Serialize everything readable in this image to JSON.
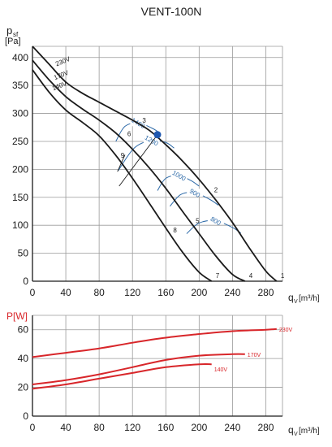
{
  "title": "VENT-100N",
  "colors": {
    "grid": "#9a9a9a",
    "axis": "#1a1a1a",
    "pressure_curve": "#1a1a1a",
    "speed_curve": "#2d6aa8",
    "operating_point": "#1f58b0",
    "power_curve": "#d8262a",
    "power_axis_label": "#d8262a"
  },
  "chart_data": [
    {
      "type": "line",
      "title": "VENT-100N",
      "ylabel_main": "p",
      "ylabel_sub": "sf",
      "ylabel_unit": "[Pa]",
      "xlabel": "q",
      "xlabel_sub": "V",
      "xlabel_unit": "[m³/h]",
      "xlim": [
        0,
        300
      ],
      "ylim": [
        0,
        420
      ],
      "xticks": [
        0,
        40,
        80,
        120,
        160,
        200,
        240,
        280
      ],
      "yticks": [
        0,
        50,
        100,
        150,
        200,
        250,
        300,
        350,
        400
      ],
      "grid": true,
      "series": [
        {
          "name": "230V",
          "label": "1",
          "x": [
            0,
            20,
            40,
            60,
            80,
            100,
            120,
            140,
            160,
            180,
            200,
            220,
            240,
            260,
            280,
            293
          ],
          "y": [
            420,
            388,
            356,
            336,
            320,
            304,
            288,
            270,
            244,
            215,
            182,
            145,
            105,
            60,
            18,
            0
          ]
        },
        {
          "name": "170V",
          "label": "4",
          "x": [
            0,
            20,
            40,
            60,
            80,
            100,
            120,
            140,
            160,
            180,
            200,
            220,
            240,
            255
          ],
          "y": [
            395,
            360,
            330,
            308,
            288,
            265,
            236,
            203,
            166,
            125,
            85,
            45,
            12,
            0
          ]
        },
        {
          "name": "140V",
          "label": "7",
          "x": [
            0,
            20,
            40,
            60,
            80,
            100,
            120,
            140,
            160,
            180,
            200,
            215
          ],
          "y": [
            378,
            338,
            306,
            284,
            260,
            225,
            184,
            140,
            95,
            52,
            16,
            0
          ]
        }
      ],
      "point_labels": [
        "2",
        "3",
        "5",
        "6",
        "8",
        "9"
      ],
      "speed_curves": [
        {
          "label": "1400",
          "x": [
            100,
            111,
            127,
            143,
            150
          ],
          "y": [
            250,
            277,
            283,
            274,
            268
          ]
        },
        {
          "label": "1200",
          "x": [
            103,
            122,
            143,
            160,
            170
          ],
          "y": [
            198,
            238,
            252,
            248,
            238
          ]
        },
        {
          "label": "1000",
          "x": [
            150,
            160,
            176,
            190,
            200
          ],
          "y": [
            162,
            184,
            189,
            180,
            170
          ]
        },
        {
          "label": "900",
          "x": [
            165,
            178,
            195,
            213,
            223
          ],
          "y": [
            134,
            155,
            158,
            146,
            136
          ]
        },
        {
          "label": "800",
          "x": [
            185,
            200,
            220,
            240,
            250
          ],
          "y": [
            85,
            104,
            108,
            96,
            86
          ]
        }
      ],
      "operating_point": {
        "x": 150,
        "y": 262
      }
    },
    {
      "type": "line",
      "ylabel": "P[W]",
      "xlabel": "q",
      "xlabel_sub": "V",
      "xlabel_unit": "[m³/h]",
      "xlim": [
        0,
        300
      ],
      "ylim": [
        0,
        70
      ],
      "xticks": [
        0,
        40,
        80,
        120,
        160,
        200,
        240,
        280
      ],
      "yticks": [
        0,
        20,
        40,
        60
      ],
      "grid": true,
      "series": [
        {
          "name": "230V",
          "x": [
            0,
            40,
            80,
            120,
            160,
            200,
            240,
            280,
            293
          ],
          "y": [
            41,
            44,
            47,
            51,
            54.5,
            57,
            59,
            60,
            60.5
          ]
        },
        {
          "name": "170V",
          "x": [
            0,
            40,
            80,
            120,
            160,
            200,
            240,
            255
          ],
          "y": [
            22,
            25,
            29,
            34,
            39,
            42,
            43,
            43
          ]
        },
        {
          "name": "140V",
          "x": [
            0,
            40,
            80,
            120,
            160,
            200,
            215
          ],
          "y": [
            19,
            22,
            26,
            30,
            34,
            36,
            36
          ]
        }
      ]
    }
  ]
}
